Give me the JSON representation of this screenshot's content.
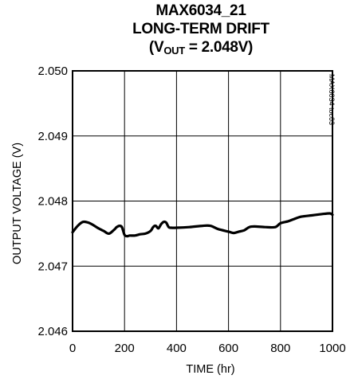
{
  "chart_data": {
    "type": "line",
    "title_lines": [
      "MAX6034_21",
      "LONG-TERM DRIFT"
    ],
    "condition": {
      "prefix": "(V",
      "subscript": "OUT",
      "suffix": " = 2.048V)"
    },
    "xlabel": "TIME (hr)",
    "ylabel": "OUTPUT VOLTAGE (V)",
    "xlim": [
      0,
      1000
    ],
    "ylim": [
      2.046,
      2.05
    ],
    "xticks": [
      0,
      200,
      400,
      600,
      800,
      1000
    ],
    "yticks": [
      "2.046",
      "2.047",
      "2.048",
      "2.049",
      "2.050"
    ],
    "grid": true,
    "toc_label": "MAX6034 toc03",
    "series": [
      {
        "x": [
          0,
          20,
          40,
          60,
          80,
          100,
          120,
          140,
          160,
          170,
          180,
          190,
          200,
          210,
          220,
          240,
          260,
          280,
          300,
          310,
          320,
          330,
          340,
          350,
          360,
          370,
          380,
          400,
          450,
          500,
          530,
          560,
          600,
          620,
          640,
          660,
          680,
          700,
          740,
          780,
          800,
          830,
          850,
          880,
          920,
          960,
          990,
          1000
        ],
        "y": [
          2.04752,
          2.04762,
          2.04768,
          2.04767,
          2.04763,
          2.04758,
          2.04754,
          2.0475,
          2.04756,
          2.0476,
          2.04762,
          2.0476,
          2.04748,
          2.04746,
          2.04747,
          2.04747,
          2.04749,
          2.0475,
          2.04754,
          2.0476,
          2.04762,
          2.04758,
          2.04764,
          2.04768,
          2.04767,
          2.0476,
          2.04759,
          2.04759,
          2.0476,
          2.04762,
          2.04762,
          2.04757,
          2.04753,
          2.04751,
          2.04753,
          2.04755,
          2.0476,
          2.04761,
          2.0476,
          2.0476,
          2.04766,
          2.04769,
          2.04772,
          2.04776,
          2.04778,
          2.0478,
          2.04781,
          2.04779
        ]
      }
    ]
  }
}
